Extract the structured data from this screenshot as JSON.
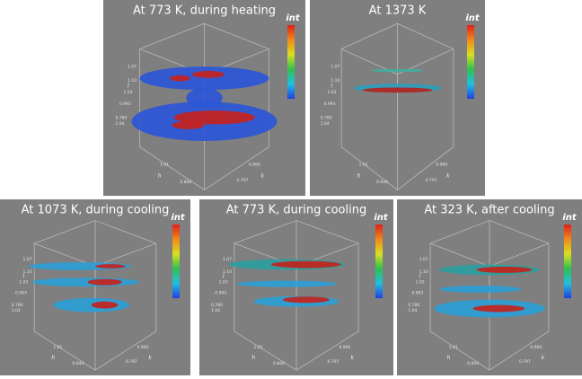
{
  "panels": [
    {
      "title": "At 773 K, during heating",
      "legend": "int",
      "ticks": [
        "1.07",
        "1.10",
        "1.03",
        "0.993",
        "0.780",
        "1.04",
        "1.01",
        "0.844",
        "0.960",
        "0.797"
      ],
      "axes": [
        "l",
        "h",
        "k"
      ]
    },
    {
      "title": "At 1373 K",
      "legend": "int",
      "ticks": [
        "1.07",
        "1.10",
        "1.03",
        "0.993",
        "0.780",
        "1.04",
        "1.01",
        "0.844",
        "0.960",
        "0.797"
      ],
      "axes": [
        "l",
        "h",
        "k"
      ]
    },
    {
      "title": "At 1073 K, during cooling",
      "legend": "int",
      "ticks": [
        "1.07",
        "1.10",
        "1.03",
        "0.993",
        "0.780",
        "1.04",
        "1.01",
        "0.844",
        "0.960",
        "0.797"
      ],
      "axes": [
        "l",
        "h",
        "k"
      ]
    },
    {
      "title": "At 773 K, during cooling",
      "legend": "int",
      "ticks": [
        "1.07",
        "1.10",
        "1.03",
        "0.993",
        "0.780",
        "1.04",
        "1.01",
        "0.844",
        "0.960",
        "0.797"
      ],
      "axes": [
        "l",
        "h",
        "k"
      ]
    },
    {
      "title": "At 323 K, after cooling",
      "legend": "int",
      "ticks": [
        "1.07",
        "1.10",
        "1.03",
        "0.993",
        "0.780",
        "1.04",
        "1.01",
        "0.844",
        "0.960",
        "0.797"
      ],
      "axes": [
        "l",
        "h",
        "k"
      ]
    }
  ]
}
